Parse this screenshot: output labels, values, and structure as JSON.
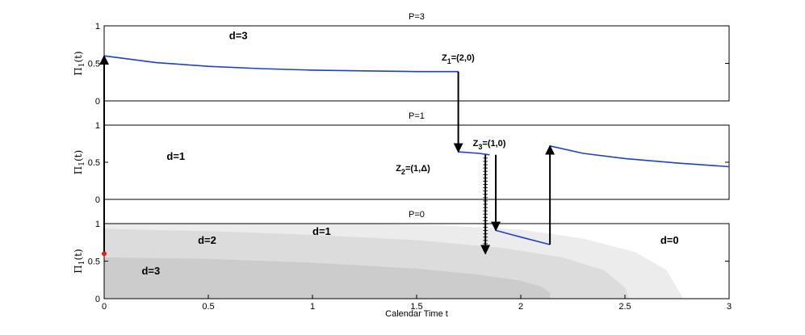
{
  "chart_data": {
    "type": "line",
    "xlabel": "Calendar Time t",
    "xlim": [
      0,
      3
    ],
    "xticks": [
      "0",
      "0.5",
      "1",
      "1.5",
      "2",
      "2.5",
      "3"
    ],
    "ylim": [
      0,
      1
    ],
    "grid": false,
    "colors": {
      "curve": "#1f3fcc",
      "arrow": "#000000",
      "marker": "#e02020",
      "region_d1": "#ececec",
      "region_d2": "#dcdcdc",
      "region_d3": "#cccccc"
    },
    "panels": [
      {
        "title": "P=3",
        "ylabel": "Π1(t)",
        "yticks": [
          "0",
          "0.5",
          "1"
        ],
        "series": [
          {
            "x": [
              0,
              0.25,
              0.5,
              0.75,
              1,
              1.25,
              1.5,
              1.7
            ],
            "y": [
              0.6,
              0.51,
              0.46,
              0.43,
              0.41,
              0.4,
              0.39,
              0.39
            ]
          }
        ],
        "regions": [
          {
            "label": "d=3",
            "at": [
              0.6,
              0.82
            ]
          }
        ],
        "annotations": [
          {
            "text": "Z1=(2,0)",
            "sub_index": "1",
            "sub_prefix": "Z",
            "sub_suffix": "=(2,0)",
            "at": [
              1.62,
              0.54
            ]
          }
        ]
      },
      {
        "title": "P=1",
        "ylabel": "Π1(t)",
        "yticks": [
          "0",
          "0.5",
          "1"
        ],
        "series": [
          {
            "x": [
              1.7,
              1.8,
              1.85
            ],
            "y": [
              0.64,
              0.62,
              0.6
            ]
          },
          {
            "x": [
              2.14,
              2.3,
              2.5,
              2.75,
              3.0
            ],
            "y": [
              0.72,
              0.62,
              0.55,
              0.49,
              0.44
            ]
          }
        ],
        "regions": [
          {
            "label": "d=1",
            "at": [
              0.3,
              0.53
            ]
          }
        ],
        "annotations": [
          {
            "text": "Z3=(1,0)",
            "sub_prefix": "Z",
            "sub_index": "3",
            "sub_suffix": "=(1,0)",
            "at": [
              1.77,
              0.72
            ]
          },
          {
            "text": "Z2=(1,Δ)",
            "sub_prefix": "Z",
            "sub_index": "2",
            "sub_suffix": "=(1,Δ)",
            "at": [
              1.4,
              0.38
            ]
          }
        ]
      },
      {
        "title": "P=0",
        "ylabel": "Π1(t)",
        "yticks": [
          "0",
          "0.5",
          "1"
        ],
        "series": [
          {
            "x": [
              1.88,
              2.0,
              2.14
            ],
            "y": [
              0.91,
              0.82,
              0.72
            ]
          }
        ],
        "regions": [
          {
            "label": "d=1",
            "at": [
              1.0,
              0.85
            ]
          },
          {
            "label": "d=2",
            "at": [
              0.45,
              0.73
            ]
          },
          {
            "label": "d=3",
            "at": [
              0.18,
              0.32
            ]
          },
          {
            "label": "d=0",
            "at": [
              2.67,
              0.73
            ]
          }
        ],
        "boundaries": {
          "d1": {
            "x": [
              0,
              0.6,
              1.2,
              1.6,
              2.0,
              2.3,
              2.55,
              2.7,
              2.78
            ],
            "y": [
              1.0,
              1.0,
              1.0,
              0.98,
              0.92,
              0.8,
              0.62,
              0.38,
              0.0
            ]
          },
          "d2": {
            "x": [
              0,
              0.5,
              1.0,
              1.5,
              1.9,
              2.2,
              2.4,
              2.5,
              2.52
            ],
            "y": [
              0.93,
              0.9,
              0.85,
              0.78,
              0.68,
              0.55,
              0.38,
              0.15,
              0.0
            ]
          },
          "d3": {
            "x": [
              0,
              0.5,
              1.0,
              1.5,
              1.8,
              2.0,
              2.1,
              2.14,
              2.14
            ],
            "y": [
              0.55,
              0.53,
              0.48,
              0.4,
              0.32,
              0.24,
              0.16,
              0.08,
              0.0
            ]
          }
        },
        "marker": {
          "x": 0,
          "y": 0.6
        }
      }
    ],
    "jumps": [
      {
        "from_panel": 2,
        "to_panel": 0,
        "x": 0,
        "y_from": 0.6,
        "y_to": 0.6,
        "style": "solid"
      },
      {
        "from_panel": 0,
        "to_panel": 1,
        "x": 1.7,
        "y_from": 0.39,
        "y_to": 0.64,
        "style": "solid"
      },
      {
        "from_panel": 1,
        "to_panel": 2,
        "x": 1.88,
        "y_from": 0.6,
        "y_to": 0.91,
        "style": "solid"
      },
      {
        "from_panel": 1,
        "to_panel": 2,
        "x": 1.83,
        "y_from": 0.6,
        "y_to": 0.6,
        "style": "ladder"
      },
      {
        "from_panel": 2,
        "to_panel": 1,
        "x": 2.14,
        "y_from": 0.72,
        "y_to": 0.72,
        "style": "solid"
      }
    ]
  }
}
